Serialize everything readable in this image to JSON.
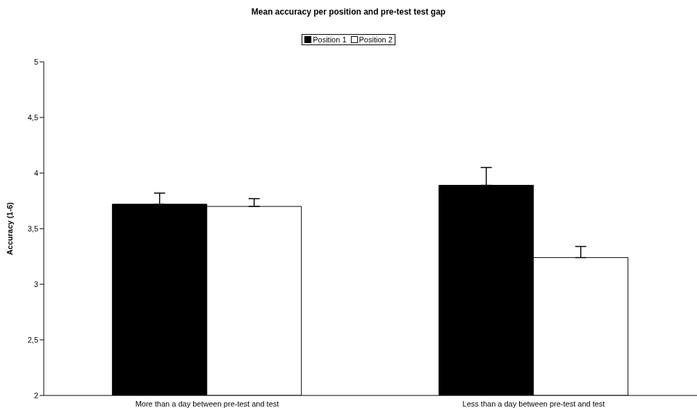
{
  "chart_data": {
    "type": "bar",
    "title": "Mean accuracy per position and pre-test test gap",
    "ylabel": "Accuracy (1-6)",
    "categories": [
      "More than a day between pre-test and test",
      "Less than a day between pre-test and test"
    ],
    "series": [
      {
        "name": "Position 1",
        "color": "#000000",
        "values": [
          3.72,
          3.89
        ],
        "errors": [
          [
            3.72,
            3.82
          ],
          [
            3.89,
            4.05
          ]
        ]
      },
      {
        "name": "Position 2",
        "color": "#ffffff",
        "values": [
          3.7,
          3.24
        ],
        "errors": [
          [
            3.7,
            3.77
          ],
          [
            3.24,
            3.34
          ]
        ]
      }
    ],
    "ylim": [
      2,
      5
    ],
    "yticks": [
      2,
      {
        "value": 2.5,
        "label": "2,5"
      },
      3,
      {
        "value": 3.5,
        "label": "3,5"
      },
      4,
      {
        "value": 4.5,
        "label": "4,5"
      },
      5
    ],
    "grid": false,
    "legend": "top"
  }
}
